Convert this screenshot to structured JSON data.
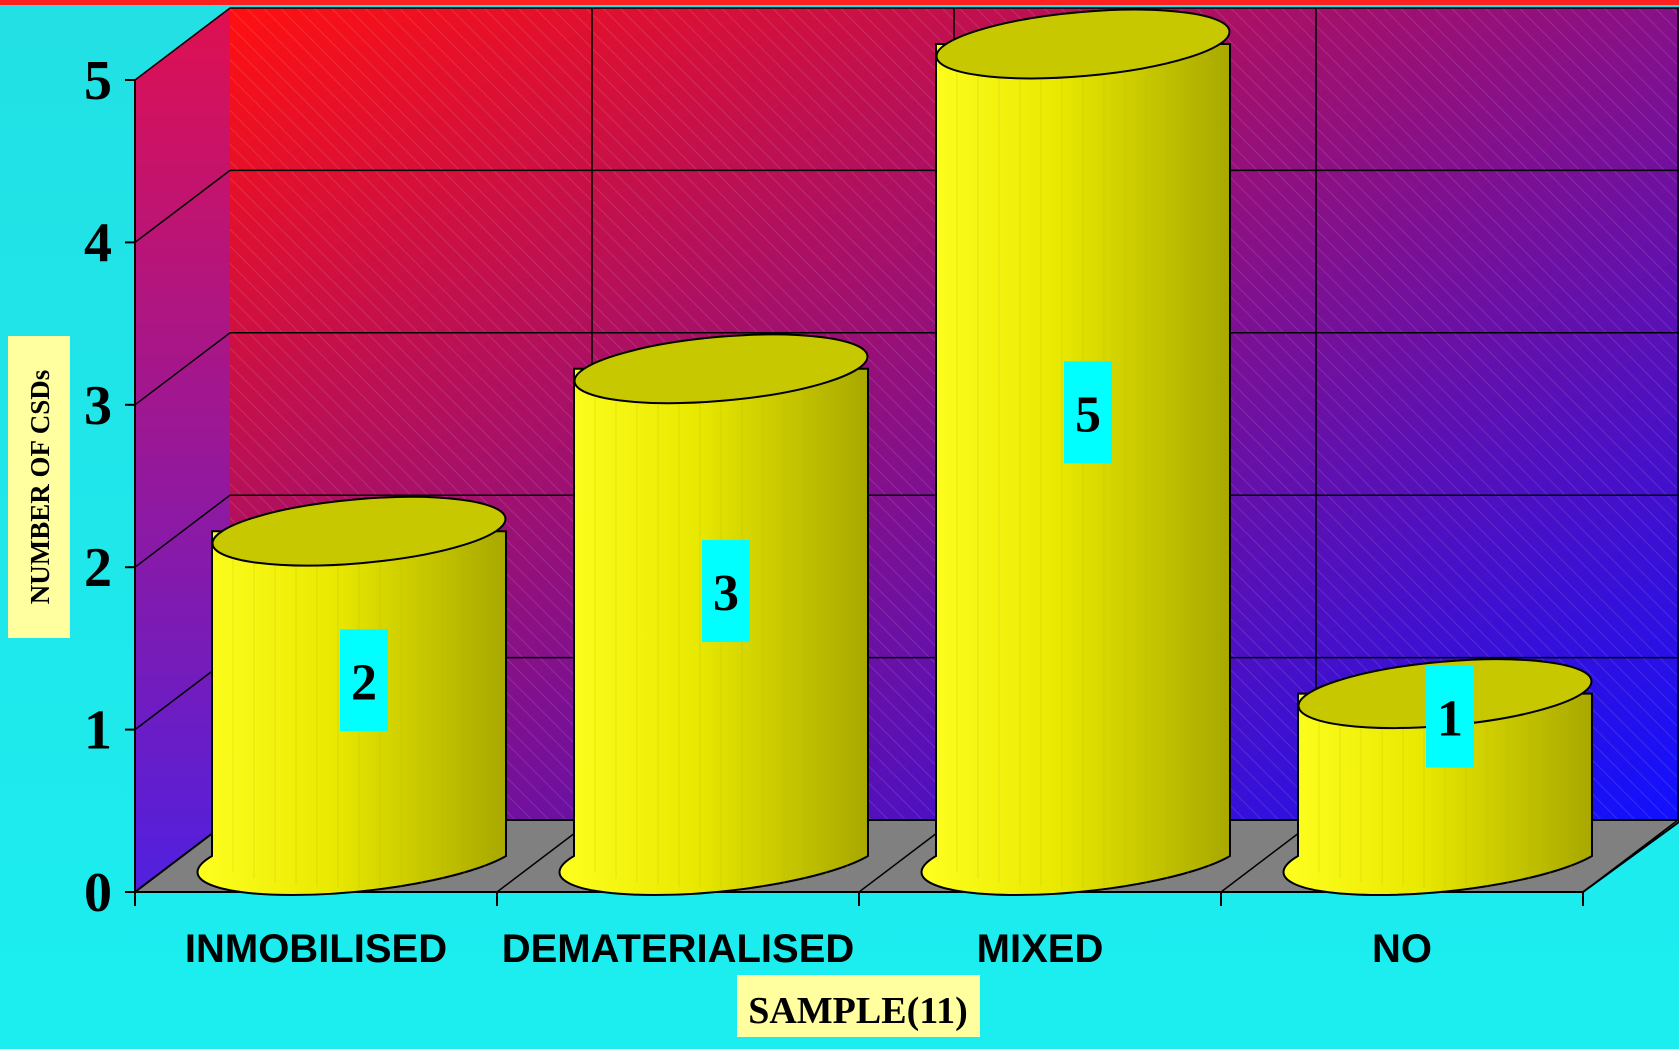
{
  "chart_data": {
    "type": "bar",
    "bar_shape": "cylinder",
    "categories": [
      "INMOBILISED",
      "DEMATERIALISED",
      "MIXED",
      "NO"
    ],
    "values": [
      2,
      3,
      5,
      1
    ],
    "data_labels": [
      "2",
      "3",
      "5",
      "1"
    ],
    "xlabel": "SAMPLE(11)",
    "ylabel": "NUMBER OF CSDs",
    "ylim": [
      0,
      5
    ],
    "yticks": [
      "0",
      "1",
      "2",
      "3",
      "4",
      "5"
    ],
    "grid": true,
    "colors": {
      "bar": "#ffff00",
      "bar_top": "#c8c800",
      "bar_shade": "#a8a800",
      "wall_left": "#ff1010",
      "wall_right": "#1010ff",
      "floor": "#808080",
      "background": "#20e8ec",
      "label_bg": "#00ffff",
      "title_bg": "#ffffa0"
    }
  }
}
